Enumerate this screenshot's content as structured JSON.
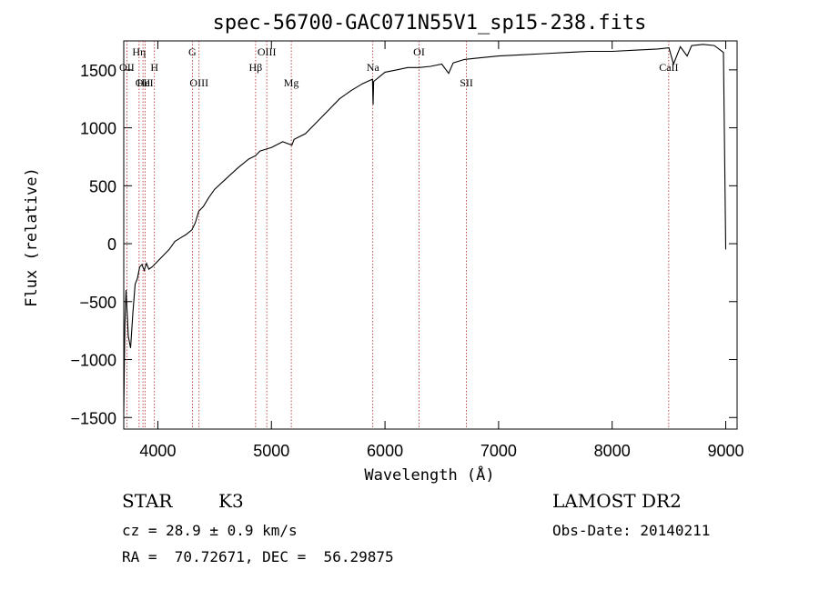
{
  "chart_data": {
    "type": "line",
    "title": "spec-56700-GAC071N55V1_sp15-238.fits",
    "xlabel": "Wavelength (Å)",
    "ylabel": "Flux (relative)",
    "xlim": [
      3700,
      9100
    ],
    "ylim": [
      -1600,
      1750
    ],
    "xticks": [
      4000,
      5000,
      6000,
      7000,
      8000,
      9000
    ],
    "yticks": [
      -1500,
      -1000,
      -500,
      0,
      500,
      1000,
      1500
    ],
    "series": [
      {
        "name": "flux",
        "x": [
          3700,
          3710,
          3720,
          3740,
          3760,
          3780,
          3800,
          3820,
          3840,
          3860,
          3880,
          3900,
          3920,
          3950,
          4000,
          4050,
          4100,
          4150,
          4200,
          4250,
          4300,
          4330,
          4360,
          4400,
          4450,
          4500,
          4600,
          4700,
          4800,
          4860,
          4900,
          5000,
          5100,
          5180,
          5200,
          5300,
          5400,
          5500,
          5600,
          5700,
          5800,
          5890,
          5895,
          5900,
          6000,
          6100,
          6200,
          6300,
          6400,
          6500,
          6560,
          6600,
          6700,
          6800,
          6900,
          7000,
          7200,
          7400,
          7600,
          7800,
          8000,
          8200,
          8400,
          8500,
          8540,
          8600,
          8660,
          8700,
          8800,
          8900,
          8980,
          9000
        ],
        "y": [
          -1450,
          -700,
          -400,
          -800,
          -900,
          -600,
          -350,
          -300,
          -200,
          -180,
          -230,
          -170,
          -220,
          -200,
          -150,
          -100,
          -50,
          20,
          50,
          80,
          120,
          180,
          280,
          320,
          400,
          470,
          560,
          650,
          730,
          760,
          800,
          830,
          880,
          850,
          900,
          950,
          1050,
          1150,
          1250,
          1320,
          1380,
          1420,
          1200,
          1400,
          1480,
          1500,
          1520,
          1520,
          1530,
          1550,
          1470,
          1560,
          1590,
          1600,
          1610,
          1620,
          1630,
          1640,
          1650,
          1660,
          1660,
          1670,
          1680,
          1690,
          1550,
          1700,
          1620,
          1710,
          1720,
          1710,
          1650,
          -50
        ]
      }
    ],
    "lines": [
      {
        "name": "OII",
        "wavelength": 3727,
        "row": 2
      },
      {
        "name": "Hη",
        "wavelength": 3835,
        "row": 1
      },
      {
        "name": "OII",
        "wavelength": 3869,
        "row": 3
      },
      {
        "name": "HeI",
        "wavelength": 3889,
        "row": 3
      },
      {
        "name": "H",
        "wavelength": 3970,
        "row": 2
      },
      {
        "name": "G",
        "wavelength": 4304,
        "row": 1
      },
      {
        "name": "OIII",
        "wavelength": 4363,
        "row": 3
      },
      {
        "name": "Hβ",
        "wavelength": 4861,
        "row": 2
      },
      {
        "name": "OIII",
        "wavelength": 4959,
        "row": 1
      },
      {
        "name": "Mg",
        "wavelength": 5175,
        "row": 3
      },
      {
        "name": "Na",
        "wavelength": 5893,
        "row": 2
      },
      {
        "name": "OI",
        "wavelength": 6300,
        "row": 1
      },
      {
        "name": "SII",
        "wavelength": 6717,
        "row": 3
      },
      {
        "name": "CaII",
        "wavelength": 8498,
        "row": 2
      }
    ]
  },
  "info": {
    "class": "STAR",
    "subclass": "K3",
    "survey": "LAMOST DR2",
    "cz": "cz = 28.9 ± 0.9 km/s",
    "obs_date": "Obs-Date: 20140211",
    "coords": "RA =  70.72671, DEC =  56.29875"
  }
}
